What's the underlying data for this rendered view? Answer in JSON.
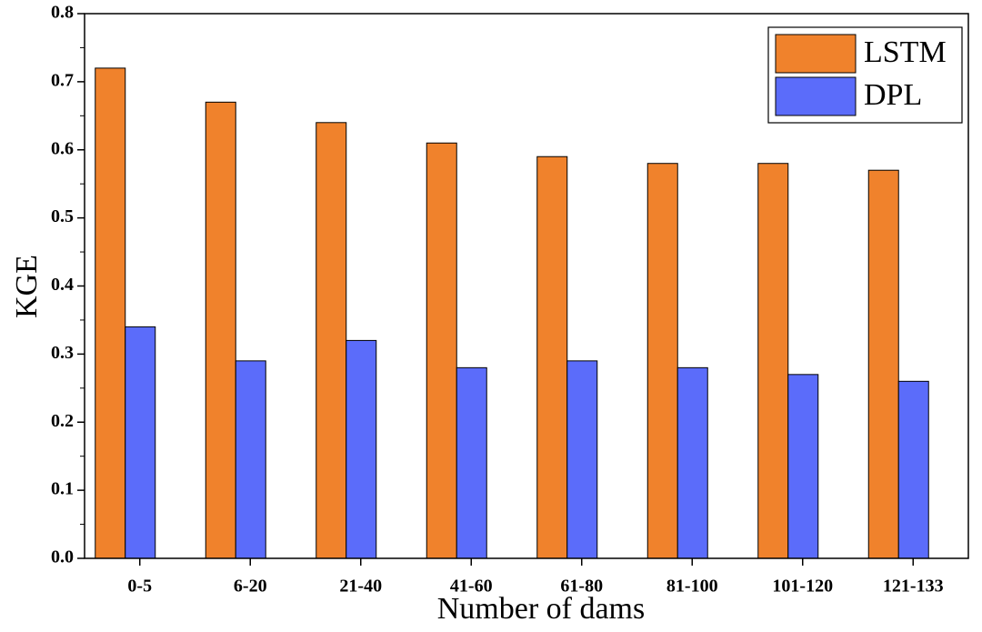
{
  "chart_data": {
    "type": "bar",
    "x_label": "Number of dams",
    "y_label": "KGE",
    "categories": [
      "0-5",
      "6-20",
      "21-40",
      "41-60",
      "61-80",
      "81-100",
      "101-120",
      "121-133"
    ],
    "series": [
      {
        "name": "LSTM",
        "color": "#f0822c",
        "values": [
          0.72,
          0.67,
          0.64,
          0.61,
          0.59,
          0.58,
          0.58,
          0.57
        ]
      },
      {
        "name": "DPL",
        "color": "#5b6cfa",
        "values": [
          0.34,
          0.29,
          0.32,
          0.28,
          0.29,
          0.28,
          0.27,
          0.26
        ]
      }
    ],
    "ylim": [
      0,
      0.8
    ],
    "yticks": [
      {
        "value": 0,
        "label": "0.0"
      },
      0.1,
      0.2,
      0.3,
      0.4,
      0.5,
      0.6,
      0.7,
      {
        "value": 0.8,
        "label": "0.8"
      }
    ],
    "legend": "top-right"
  }
}
